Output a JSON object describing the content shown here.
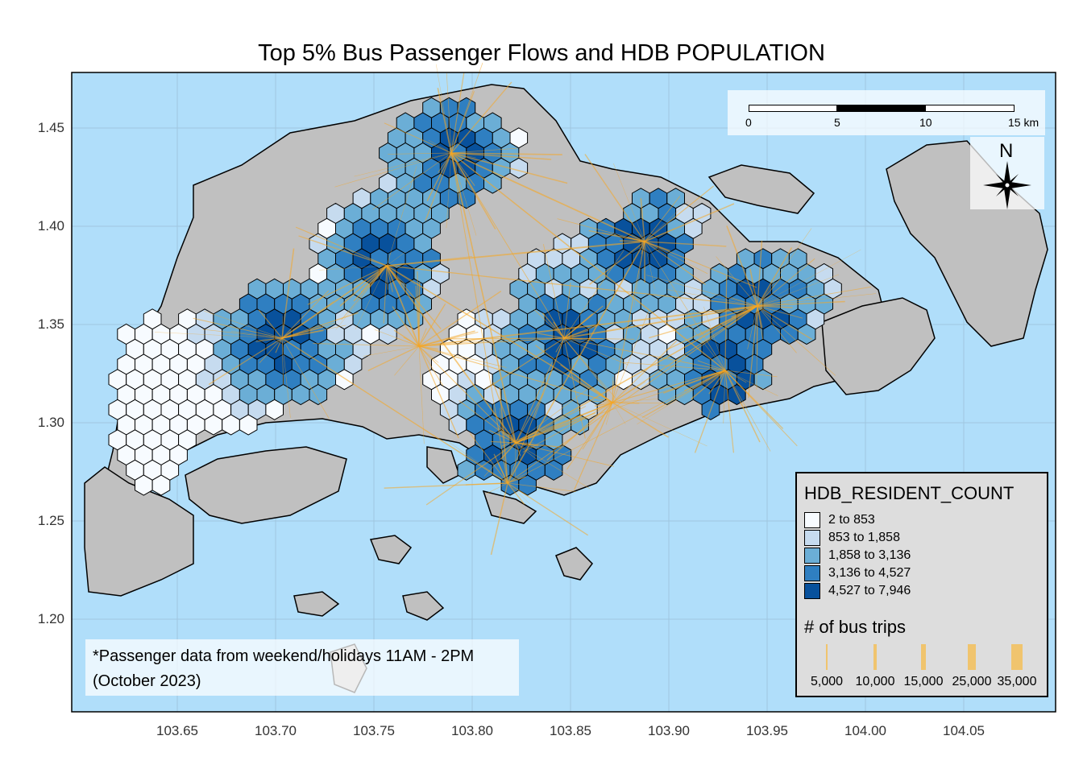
{
  "title": "Top 5% Bus Passenger Flows and HDB POPULATION",
  "axes": {
    "y_ticks": [
      "1.45",
      "1.40",
      "1.35",
      "1.30",
      "1.25",
      "1.20"
    ],
    "x_ticks": [
      "103.65",
      "103.70",
      "103.75",
      "103.80",
      "103.85",
      "103.90",
      "103.95",
      "104.00",
      "104.05"
    ]
  },
  "scale_bar": {
    "labels": [
      "0",
      "5",
      "10",
      "15 km"
    ]
  },
  "compass": {
    "north_label": "N"
  },
  "legend": {
    "population_title": "HDB_RESIDENT_COUNT",
    "classes": [
      {
        "label": "2 to 853",
        "color": "#f7fbff"
      },
      {
        "label": "853 to 1,858",
        "color": "#c6dbef"
      },
      {
        "label": "1,858 to 3,136",
        "color": "#6baed6"
      },
      {
        "label": "3,136 to 4,527",
        "color": "#2f7fc1"
      },
      {
        "label": "4,527 to 7,946",
        "color": "#08519c"
      }
    ],
    "flow_title": "# of bus trips",
    "flow_sizes": [
      {
        "label": "5,000",
        "value": 5000
      },
      {
        "label": "10,000",
        "value": 10000
      },
      {
        "label": "15,000",
        "value": 15000
      },
      {
        "label": "25,000",
        "value": 25000
      },
      {
        "label": "35,000",
        "value": 35000
      }
    ]
  },
  "note": {
    "line1": "*Passenger data from weekend/holidays 11AM - 2PM",
    "line2": "(October 2023)"
  },
  "colors": {
    "sea": "#b0defa",
    "land": "#c0c0c0",
    "flow": "#f5a623",
    "grid": "#9fc6e0"
  }
}
